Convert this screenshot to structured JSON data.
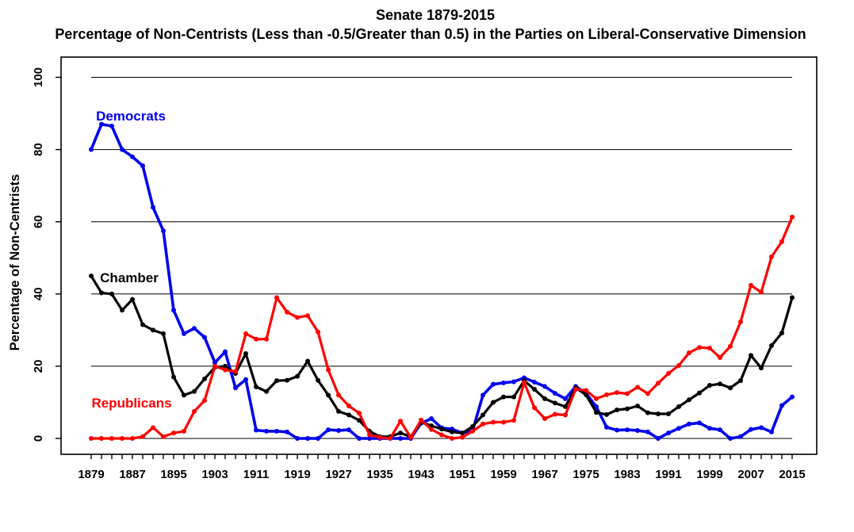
{
  "chart": {
    "title": "Senate 1879-2015",
    "subtitle": "Percentage of Non-Centrists (Less than -0.5/Greater than 0.5) in the Parties on Liberal-Conservative Dimension",
    "y_axis_title": "Percentage of Non-Centrists"
  },
  "chart_data": {
    "type": "line",
    "title": "Senate 1879-2015",
    "subtitle": "Percentage of Non-Centrists (Less than -0.5/Greater than 0.5) in the Parties on Liberal-Conservative Dimension",
    "xlabel": "",
    "ylabel": "Percentage of Non-Centrists",
    "xlim": [
      1879,
      2015
    ],
    "ylim": [
      0,
      100
    ],
    "grid": true,
    "gridlines": [
      0,
      20,
      40,
      60,
      80,
      100
    ],
    "y_ticks": [
      0,
      20,
      40,
      60,
      80,
      100
    ],
    "x_tick_step_minor": 2,
    "x_tick_labels": [
      1879,
      1887,
      1895,
      1903,
      1911,
      1919,
      1927,
      1935,
      1943,
      1951,
      1959,
      1967,
      1975,
      1983,
      1991,
      1999,
      2007,
      2015
    ],
    "legend_position": "labels-inline-left",
    "x": [
      1879,
      1881,
      1883,
      1885,
      1887,
      1889,
      1891,
      1893,
      1895,
      1897,
      1899,
      1901,
      1903,
      1905,
      1907,
      1909,
      1911,
      1913,
      1915,
      1917,
      1919,
      1921,
      1923,
      1925,
      1927,
      1929,
      1931,
      1933,
      1935,
      1937,
      1939,
      1941,
      1943,
      1945,
      1947,
      1949,
      1951,
      1953,
      1955,
      1957,
      1959,
      1961,
      1963,
      1965,
      1967,
      1969,
      1971,
      1973,
      1975,
      1977,
      1979,
      1981,
      1983,
      1985,
      1987,
      1989,
      1991,
      1993,
      1995,
      1997,
      1999,
      2001,
      2003,
      2005,
      2007,
      2009,
      2011,
      2013,
      2015
    ],
    "series": [
      {
        "name": "Democrats",
        "color": "#0000EE",
        "values": [
          80,
          87,
          86.5,
          80,
          78,
          75.5,
          64,
          57.5,
          35.5,
          29,
          30.5,
          28,
          21,
          24,
          14,
          16.3,
          2.3,
          2,
          2,
          1.8,
          0,
          0,
          0,
          2.4,
          2.2,
          2.4,
          0,
          0,
          0,
          0,
          0,
          0,
          4.2,
          5.5,
          2.9,
          2.6,
          1.5,
          2.1,
          12,
          15,
          15.4,
          15.7,
          16.8,
          15.6,
          14.4,
          12.5,
          11,
          14.4,
          12.5,
          8.8,
          3.1,
          2.3,
          2.4,
          2.2,
          1.8,
          0,
          1.5,
          2.8,
          4,
          4.3,
          2.8,
          2.4,
          0,
          0.5,
          2.5,
          3,
          1.8,
          9.1,
          11.5
        ]
      },
      {
        "name": "Chamber",
        "color": "#000000",
        "values": [
          45,
          40.3,
          40,
          35.5,
          38.5,
          31.5,
          30,
          29,
          17,
          12,
          13,
          16.5,
          19.7,
          20,
          18,
          23.5,
          14.3,
          13,
          16,
          16.1,
          17.2,
          21.4,
          16.1,
          12,
          7.5,
          6.5,
          5,
          2,
          0.5,
          0.5,
          1.5,
          0.5,
          4.5,
          3.5,
          2.6,
          1.8,
          1.5,
          3.3,
          6.5,
          10,
          11.5,
          11.5,
          16,
          13.6,
          11,
          9.8,
          8.8,
          14,
          12.1,
          7.2,
          6.6,
          7.9,
          8.2,
          9,
          7.1,
          6.8,
          6.8,
          8.8,
          10.7,
          12.6,
          14.7,
          15.1,
          14,
          16,
          23,
          19.5,
          25.7,
          29.2,
          39
        ]
      },
      {
        "name": "Republicans",
        "color": "#FF0000",
        "values": [
          0,
          0,
          0,
          0,
          0,
          0.5,
          3,
          0.5,
          1.5,
          2,
          7.5,
          10.5,
          20,
          19,
          18.5,
          29,
          27.5,
          27.5,
          39,
          35,
          33.5,
          34,
          29.5,
          19,
          12,
          9,
          7,
          1,
          0.3,
          0,
          4.8,
          0.3,
          5.1,
          2.5,
          1,
          0,
          0.3,
          2,
          4,
          4.5,
          4.5,
          5,
          15.5,
          8.5,
          5.5,
          6.7,
          6.5,
          13.6,
          13.3,
          11,
          12.1,
          12.7,
          12.4,
          14.2,
          12.4,
          15.3,
          18,
          20.2,
          23.7,
          25.2,
          25,
          22.4,
          25.5,
          32.3,
          42.4,
          40.5,
          50.3,
          54.5,
          61.3
        ]
      }
    ]
  }
}
